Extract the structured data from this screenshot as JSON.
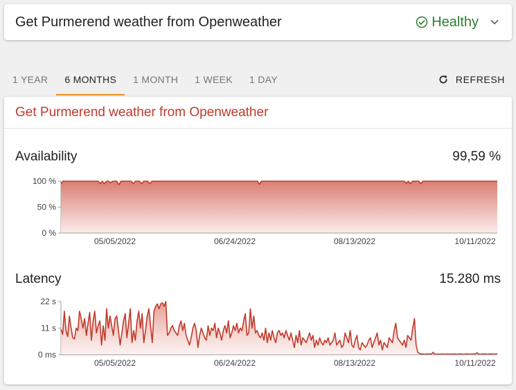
{
  "header": {
    "title": "Get Purmerend weather from Openweather",
    "status": "Healthy",
    "status_color": "#2e7d32"
  },
  "tabs": [
    {
      "label": "1 YEAR",
      "active": false
    },
    {
      "label": "6 MONTHS",
      "active": true
    },
    {
      "label": "1 MONTH",
      "active": false
    },
    {
      "label": "1 WEEK",
      "active": false
    },
    {
      "label": "1 DAY",
      "active": false
    }
  ],
  "refresh_label": "REFRESH",
  "card": {
    "title": "Get Purmerend weather from Openweather",
    "availability_label": "Availability",
    "availability_value": "99,59 %",
    "latency_label": "Latency",
    "latency_value": "15.280 ms"
  },
  "colors": {
    "line": "#c0392b",
    "accent_tab": "#e8901f",
    "title": "#c0392b"
  },
  "chart_data": [
    {
      "type": "area",
      "title": "Availability",
      "y_tick_labels": [
        "0 %",
        "50 %",
        "100 %"
      ],
      "x_tick_labels": [
        "05/05/2022",
        "06/24/2022",
        "08/13/2022",
        "10/11/2022"
      ],
      "ylim": [
        0,
        100
      ],
      "series": [
        {
          "values": [
            95,
            100,
            100,
            100,
            100,
            100,
            100,
            100,
            100,
            100,
            100,
            100,
            100,
            100,
            100,
            100,
            100,
            100,
            100,
            95,
            100,
            95,
            100,
            100,
            97,
            100,
            100,
            100,
            93,
            100,
            100,
            100,
            100,
            100,
            100,
            95,
            100,
            100,
            100,
            95,
            100,
            100,
            100,
            95,
            100,
            100,
            100,
            100,
            100,
            100,
            100,
            100,
            100,
            100,
            100,
            100,
            100,
            100,
            100,
            100,
            100,
            100,
            100,
            100,
            100,
            100,
            100,
            100,
            100,
            100,
            100,
            100,
            100,
            100,
            100,
            100,
            100,
            100,
            100,
            100,
            100,
            100,
            100,
            100,
            100,
            100,
            100,
            100,
            100,
            100,
            100,
            100,
            100,
            100,
            100,
            100,
            94,
            100,
            100,
            100,
            100,
            100,
            100,
            100,
            100,
            100,
            100,
            100,
            100,
            100,
            100,
            100,
            100,
            100,
            100,
            100,
            100,
            100,
            100,
            100,
            100,
            100,
            100,
            100,
            100,
            100,
            100,
            100,
            100,
            100,
            100,
            100,
            100,
            100,
            100,
            100,
            100,
            100,
            100,
            100,
            100,
            100,
            100,
            100,
            100,
            100,
            100,
            100,
            100,
            100,
            100,
            100,
            100,
            100,
            100,
            100,
            100,
            100,
            100,
            100,
            100,
            100,
            100,
            100,
            100,
            100,
            100,
            96,
            100,
            95,
            100,
            100,
            100,
            100,
            95,
            100,
            100,
            100,
            100,
            100,
            100,
            100,
            100,
            100,
            100,
            100,
            100,
            100,
            100,
            100,
            100,
            100,
            100,
            100,
            100,
            100,
            100,
            100,
            100,
            100,
            100,
            100,
            100,
            100,
            100,
            100,
            100,
            100,
            100,
            100,
            100,
            100
          ]
        }
      ]
    },
    {
      "type": "area",
      "title": "Latency",
      "y_tick_labels": [
        "0 ms",
        "11 s",
        "22 s"
      ],
      "x_tick_labels": [
        "05/05/2022",
        "06/24/2022",
        "08/13/2022",
        "10/11/2022"
      ],
      "ylim": [
        0,
        22
      ],
      "series": [
        {
          "values": [
            10.5,
            8.5,
            18,
            10,
            7.5,
            16,
            11,
            7,
            6.5,
            11,
            10,
            18,
            15,
            11,
            15,
            8,
            13,
            17.5,
            6,
            14,
            18,
            9,
            12,
            14,
            4,
            12,
            6,
            19,
            11,
            16,
            12,
            8,
            15,
            16,
            10,
            4,
            9,
            14,
            17,
            7,
            13,
            19,
            5,
            10,
            6,
            14,
            18,
            11,
            17,
            5,
            10,
            16,
            19,
            12,
            5,
            18,
            20,
            21,
            19,
            21,
            21.5,
            20,
            22,
            8,
            9,
            11,
            12,
            10,
            9,
            8,
            12,
            14,
            10,
            13,
            8,
            6,
            4,
            7,
            11,
            13,
            10,
            3,
            8,
            11,
            9,
            7,
            6,
            12,
            8,
            11,
            10,
            13,
            7,
            11,
            9,
            6,
            10,
            12,
            9,
            14,
            7,
            9,
            12,
            10,
            13,
            9,
            11,
            10,
            14,
            17,
            8,
            9,
            19,
            11,
            16,
            9,
            10,
            8,
            7,
            9,
            6,
            11,
            5,
            9,
            6,
            10,
            7,
            5,
            9,
            10,
            8,
            9,
            7,
            10,
            8,
            6,
            9,
            6,
            3,
            8,
            5,
            10,
            4,
            7,
            6,
            5,
            7,
            9,
            6,
            8,
            3,
            6,
            4,
            7,
            5,
            4,
            6,
            5,
            7,
            4,
            5,
            6,
            9,
            4,
            5,
            6,
            3,
            4,
            9,
            7,
            5,
            10,
            4,
            3,
            6,
            8,
            3,
            2,
            5,
            4,
            3,
            4,
            6,
            7,
            3,
            5,
            7,
            9,
            4,
            6,
            2,
            5,
            4,
            3,
            7,
            6,
            5,
            10,
            13,
            7,
            6,
            5,
            4,
            6,
            3,
            8,
            7,
            6,
            11,
            15,
            4,
            1,
            0.5,
            0.3,
            0.3,
            0.2,
            0.3,
            0.3,
            0.3,
            0.2,
            1,
            0.3,
            0.2,
            0.3,
            0.2,
            0.3,
            0.3,
            0.2,
            0.3,
            0.3,
            0.2,
            0.3,
            0.3,
            0.3,
            0.2,
            0.3,
            0.3,
            0.3,
            0.2,
            0.3,
            0.3,
            0.3,
            0.2,
            0.3,
            0.3,
            0.3,
            0.8,
            0.3,
            0.2,
            0.3,
            0.3,
            0.3,
            0.2,
            0.3,
            0.3,
            0.3,
            0.2,
            0.3,
            0.3
          ]
        }
      ]
    }
  ]
}
